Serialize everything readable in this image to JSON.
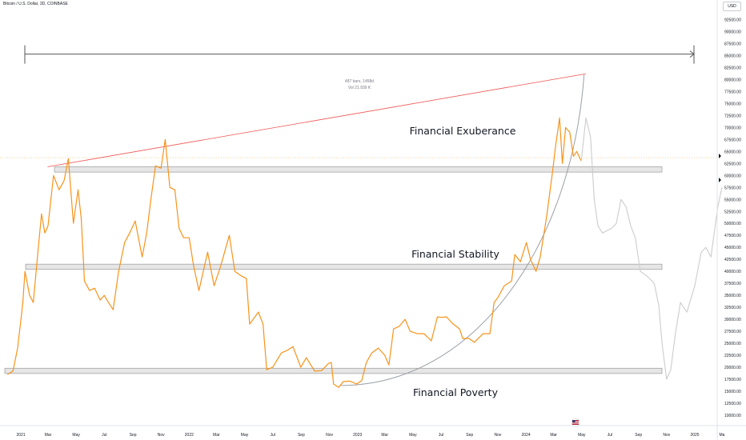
{
  "header": {
    "title": "Bitcoin / U.S. Dollar, 3D, COINBASE"
  },
  "currency_button": {
    "label": "USD"
  },
  "colors": {
    "price_line": "#f7931a",
    "projection_line": "#cccccc",
    "arc": "#9aa0a6",
    "trendline": "#ef5350",
    "measure": "#555555",
    "band_fill": "#e6e6e6",
    "band_stroke": "#9a9a9a",
    "current_price_line": "#f7c27a"
  },
  "chart_data": {
    "type": "line",
    "title": "",
    "xlabel": "",
    "ylabel": "",
    "ylim": [
      8750,
      95600
    ],
    "xlim": [
      "2020-12-01",
      "2025-03-15"
    ],
    "x_ticks": [
      {
        "date": "2021-01-01",
        "label": "2021"
      },
      {
        "date": "2021-03-01",
        "label": "Mar"
      },
      {
        "date": "2021-05-01",
        "label": "May"
      },
      {
        "date": "2021-07-01",
        "label": "Jul"
      },
      {
        "date": "2021-09-01",
        "label": "Sep"
      },
      {
        "date": "2021-11-01",
        "label": "Nov"
      },
      {
        "date": "2022-01-01",
        "label": "2022"
      },
      {
        "date": "2022-03-01",
        "label": "Mar"
      },
      {
        "date": "2022-05-01",
        "label": "May"
      },
      {
        "date": "2022-07-01",
        "label": "Jul"
      },
      {
        "date": "2022-09-01",
        "label": "Sep"
      },
      {
        "date": "2022-11-01",
        "label": "Nov"
      },
      {
        "date": "2023-01-01",
        "label": "2023"
      },
      {
        "date": "2023-03-01",
        "label": "Mar"
      },
      {
        "date": "2023-05-01",
        "label": "May"
      },
      {
        "date": "2023-07-01",
        "label": "Jul"
      },
      {
        "date": "2023-09-01",
        "label": "Sep"
      },
      {
        "date": "2023-11-01",
        "label": "Nov"
      },
      {
        "date": "2024-01-01",
        "label": "2024"
      },
      {
        "date": "2024-03-01",
        "label": "Mar"
      },
      {
        "date": "2024-05-01",
        "label": "May"
      },
      {
        "date": "2024-07-01",
        "label": "Jul"
      },
      {
        "date": "2024-09-01",
        "label": "Sep"
      },
      {
        "date": "2024-11-01",
        "label": "Nov"
      },
      {
        "date": "2025-01-01",
        "label": "2025"
      },
      {
        "date": "2025-03-01",
        "label": "Ma"
      }
    ],
    "y_ticks": [
      10000,
      12500,
      15000,
      17500,
      20000,
      22500,
      25000,
      27500,
      30000,
      32500,
      35000,
      37500,
      40000,
      42500,
      45000,
      47500,
      50000,
      52500,
      55000,
      57500,
      60000,
      62500,
      65000,
      67500,
      70000,
      72500,
      75000,
      77500,
      80000,
      82500,
      85000,
      87500,
      90000,
      92500
    ],
    "y_tick_labels": [
      "10000.00",
      "12500.00",
      "15000.00",
      "17500.00",
      "20000.00",
      "22500.00",
      "25000.00",
      "27500.00",
      "30000.00",
      "32500.00",
      "35000.00",
      "37500.00",
      "40000.00",
      "42500.00",
      "45000.00",
      "47500.00",
      "50000.00",
      "52500.00",
      "55000.00",
      "57500.00",
      "60000.00",
      "62500.00",
      "65000.00",
      "67500.00",
      "70000.00",
      "72500.00",
      "75000.00",
      "77500.00",
      "80000.00",
      "82500.00",
      "85000.00",
      "87500.00",
      "90000.00",
      "92500.00"
    ],
    "series": [
      {
        "x": [
          "2020-12-03",
          "2020-12-15",
          "2020-12-25",
          "2021-01-05",
          "2021-01-10",
          "2021-01-20",
          "2021-01-28",
          "2021-02-08",
          "2021-02-15",
          "2021-02-22",
          "2021-03-01",
          "2021-03-13",
          "2021-03-25",
          "2021-04-05",
          "2021-04-14",
          "2021-04-25",
          "2021-05-05",
          "2021-05-12",
          "2021-05-19",
          "2021-05-30",
          "2021-06-10",
          "2021-06-22",
          "2021-07-01",
          "2021-07-10",
          "2021-07-20",
          "2021-08-01",
          "2021-08-14",
          "2021-08-25",
          "2021-09-06",
          "2021-09-21",
          "2021-10-01",
          "2021-10-10",
          "2021-10-20",
          "2021-11-01",
          "2021-11-10",
          "2021-11-20",
          "2021-12-01",
          "2021-12-10",
          "2021-12-20",
          "2022-01-01",
          "2022-01-10",
          "2022-01-22",
          "2022-02-10",
          "2022-02-24",
          "2022-03-10",
          "2022-03-29",
          "2022-04-10",
          "2022-04-25",
          "2022-05-05",
          "2022-05-12",
          "2022-05-31",
          "2022-06-10",
          "2022-06-18",
          "2022-07-01",
          "2022-07-20",
          "2022-08-01",
          "2022-08-14",
          "2022-08-31",
          "2022-09-12",
          "2022-09-30",
          "2022-10-15",
          "2022-10-30",
          "2022-11-05",
          "2022-11-10",
          "2022-11-21",
          "2022-12-01",
          "2022-12-15",
          "2022-12-30",
          "2023-01-10",
          "2023-01-20",
          "2023-02-01",
          "2023-02-15",
          "2023-03-01",
          "2023-03-10",
          "2023-03-20",
          "2023-04-01",
          "2023-04-14",
          "2023-04-25",
          "2023-05-10",
          "2023-05-25",
          "2023-06-10",
          "2023-06-23",
          "2023-07-01",
          "2023-07-13",
          "2023-07-25",
          "2023-08-10",
          "2023-08-17",
          "2023-08-31",
          "2023-09-11",
          "2023-09-30",
          "2023-10-15",
          "2023-10-24",
          "2023-11-01",
          "2023-11-15",
          "2023-12-01",
          "2023-12-08",
          "2023-12-20",
          "2024-01-02",
          "2024-01-11",
          "2024-01-23",
          "2024-02-01",
          "2024-02-15",
          "2024-02-28",
          "2024-03-05",
          "2024-03-14",
          "2024-03-20",
          "2024-03-27",
          "2024-04-05",
          "2024-04-13",
          "2024-04-20",
          "2024-04-30"
        ],
        "values": [
          18500,
          19200,
          24000,
          33000,
          40000,
          35000,
          33500,
          45000,
          52000,
          48000,
          49500,
          60000,
          57000,
          59000,
          63500,
          50000,
          57000,
          51000,
          38000,
          36000,
          36500,
          34000,
          35000,
          33500,
          32000,
          40000,
          46000,
          48000,
          50500,
          43000,
          48000,
          55000,
          62000,
          61500,
          67500,
          57500,
          57000,
          49000,
          47000,
          47000,
          41500,
          36000,
          44000,
          37000,
          41000,
          47500,
          40000,
          39000,
          38500,
          29000,
          31500,
          29000,
          19500,
          20000,
          23000,
          23500,
          24300,
          20000,
          22000,
          19200,
          19300,
          20800,
          21000,
          16500,
          15800,
          17000,
          17100,
          16500,
          17200,
          21000,
          23000,
          24000,
          22500,
          20500,
          28000,
          28500,
          30000,
          27500,
          27000,
          27000,
          25500,
          30500,
          30400,
          30500,
          29200,
          28000,
          26000,
          26000,
          25200,
          27000,
          27000,
          33500,
          34500,
          37000,
          38000,
          43500,
          42000,
          46000,
          42500,
          40000,
          43000,
          51500,
          61000,
          66000,
          72000,
          62500,
          70000,
          69000,
          64000,
          65000,
          63000
        ]
      },
      {
        "x": [
          "2024-04-30",
          "2024-05-10",
          "2024-05-20",
          "2024-05-28",
          "2024-06-05",
          "2024-06-15",
          "2024-06-25",
          "2024-07-05",
          "2024-07-15",
          "2024-07-25",
          "2024-08-05",
          "2024-08-15",
          "2024-08-25",
          "2024-09-05",
          "2024-09-20",
          "2024-10-05",
          "2024-10-15",
          "2024-10-22",
          "2024-11-01",
          "2024-11-10",
          "2024-11-20",
          "2024-12-01",
          "2024-12-15",
          "2025-01-01",
          "2025-01-15",
          "2025-01-25",
          "2025-02-05",
          "2025-02-20",
          "2025-03-01"
        ],
        "values": [
          63000,
          72000,
          68000,
          55000,
          49500,
          48000,
          48500,
          49000,
          50000,
          55000,
          53500,
          49500,
          47000,
          40000,
          39000,
          37500,
          33000,
          25000,
          17500,
          19500,
          27000,
          33500,
          31500,
          37000,
          44000,
          45000,
          43000,
          53500,
          57500
        ]
      }
    ],
    "curve_label": {
      "text_values": [
        "487 bars, 1458d",
        "Vol 21.939 K"
      ]
    },
    "zones": [
      {
        "label": "Financial Exuberance",
        "band_low": 60700,
        "band_high": 61800
      },
      {
        "label": "Financial Stability",
        "band_low": 40400,
        "band_high": 41500
      },
      {
        "label": "Financial Poverty",
        "band_low": 18700,
        "band_high": 19800
      }
    ],
    "trendline": {
      "x": [
        "2021-02-28",
        "2024-05-10"
      ],
      "y": [
        61800,
        81200
      ]
    },
    "measure_range": {
      "x": [
        "2021-01-01",
        "2025-01-01"
      ],
      "y": 85300,
      "text_lines": [
        "487 bars, 1458d",
        "Vol 21.939 K"
      ]
    },
    "arc": {
      "x_start": "2022-11-25",
      "x_end": "2024-05-06",
      "y_start": 16200,
      "y_end": 81000
    },
    "current_price": 63700,
    "legend": "none",
    "grid": false
  }
}
